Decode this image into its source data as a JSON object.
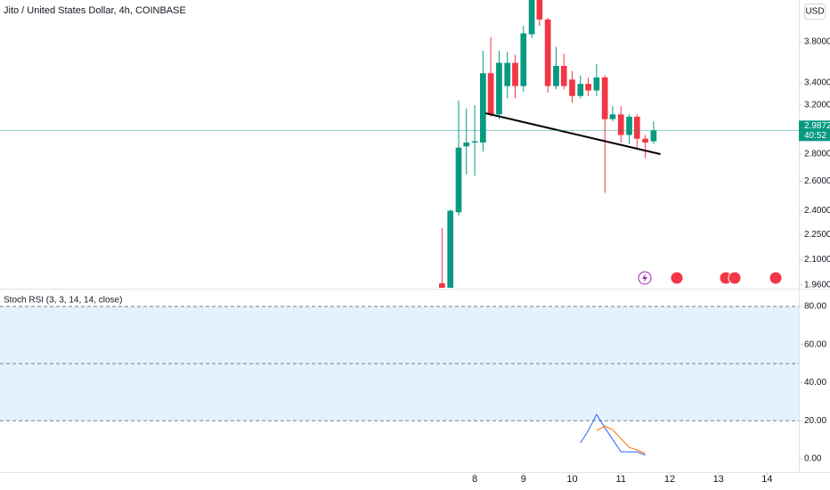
{
  "chart_data": [
    {
      "type": "candlestick",
      "title": "Jito / United States Dollar, 4h, COINBASE",
      "currency": "USD",
      "x": [
        7.33,
        7.5,
        7.67,
        7.83,
        8,
        8.17,
        8.33,
        8.5,
        8.67,
        8.83,
        9,
        9.17,
        9.33,
        9.5,
        9.67,
        9.83,
        10,
        10.17,
        10.33,
        10.5,
        10.67,
        10.83,
        11,
        11.17,
        11.33,
        11.5,
        11.67
      ],
      "open": [
        1.97,
        1.93,
        2.39,
        2.86,
        2.89,
        2.89,
        3.49,
        3.12,
        3.37,
        3.59,
        3.37,
        3.88,
        4.26,
        4.04,
        3.37,
        3.56,
        3.43,
        3.28,
        3.39,
        3.33,
        3.45,
        3.08,
        3.12,
        2.95,
        3.1,
        2.92,
        2.9
      ],
      "high": [
        2.29,
        2.41,
        3.24,
        3.17,
        3.2,
        3.71,
        3.85,
        3.71,
        3.7,
        3.67,
        3.97,
        4.3,
        4.3,
        4.06,
        3.75,
        3.68,
        3.51,
        3.47,
        3.45,
        3.58,
        3.47,
        3.19,
        3.19,
        3.12,
        3.12,
        2.95,
        3.06
      ],
      "low": [
        1.9,
        1.9,
        2.37,
        2.65,
        2.64,
        2.82,
        3.1,
        3.08,
        3.26,
        3.26,
        3.32,
        3.84,
        3.97,
        3.31,
        3.34,
        3.34,
        3.22,
        3.26,
        3.28,
        3.28,
        2.52,
        3.06,
        2.89,
        2.88,
        2.85,
        2.77,
        2.88
      ],
      "close": [
        1.93,
        2.4,
        2.85,
        2.89,
        2.9,
        3.49,
        3.12,
        3.59,
        3.59,
        3.37,
        3.89,
        4.26,
        4.04,
        3.37,
        3.56,
        3.37,
        3.28,
        3.39,
        3.33,
        3.45,
        3.08,
        3.12,
        2.95,
        3.1,
        2.92,
        2.89,
        2.9872
      ],
      "up_color": "#089981",
      "down_color": "#f23645",
      "log_scale": true,
      "xlim": [
        -1.74,
        14.65
      ],
      "ylim": [
        1.946,
        4.26
      ],
      "yticks": [
        {
          "value": 3.8,
          "label": "3.8000"
        },
        {
          "value": 3.4,
          "label": "3.4000"
        },
        {
          "value": 3.2,
          "label": "3.2000"
        },
        {
          "value": 2.8,
          "label": "2.8000"
        },
        {
          "value": 2.6,
          "label": "2.6000"
        },
        {
          "value": 2.4,
          "label": "2.4000"
        },
        {
          "value": 2.25,
          "label": "2.2500"
        },
        {
          "value": 2.1,
          "label": "2.1000"
        },
        {
          "value": 1.96,
          "label": "1.9600"
        }
      ],
      "last_price": 2.9872,
      "countdown": "40:52",
      "trend_line": {
        "x": [
          8.22,
          11.81
        ],
        "y": [
          3.13,
          2.8
        ],
        "color": "#000000"
      }
    },
    {
      "type": "line",
      "title": "Stoch RSI (3, 3, 14, 14, close)",
      "x": [
        10.17,
        10.33,
        10.5,
        10.67,
        10.83,
        11,
        11.17,
        11.33,
        11.5
      ],
      "series": [
        {
          "color": "#2962ff",
          "values": [
            8.4,
            14.9,
            23.3,
            16.3,
            10.2,
            3.7,
            3.7,
            3.7,
            1.9
          ]
        },
        {
          "color": "#ff6d00",
          "values": [
            null,
            null,
            14.9,
            17.2,
            15.3,
            10.7,
            6,
            4.7,
            2.8
          ]
        }
      ],
      "xlim": [
        -1.74,
        14.65
      ],
      "xticks": [
        8,
        9,
        10,
        11,
        12,
        13,
        14
      ],
      "ylim": [
        -7,
        88.4
      ],
      "yticks": [
        {
          "value": 80,
          "label": "80.00"
        },
        {
          "value": 60,
          "label": "60.00"
        },
        {
          "value": 40,
          "label": "40.00"
        },
        {
          "value": 20,
          "label": "20.00"
        },
        {
          "value": 0,
          "label": "0.00"
        }
      ],
      "bands": [
        20,
        50,
        80
      ],
      "band_color": "#e3f2fd"
    }
  ]
}
